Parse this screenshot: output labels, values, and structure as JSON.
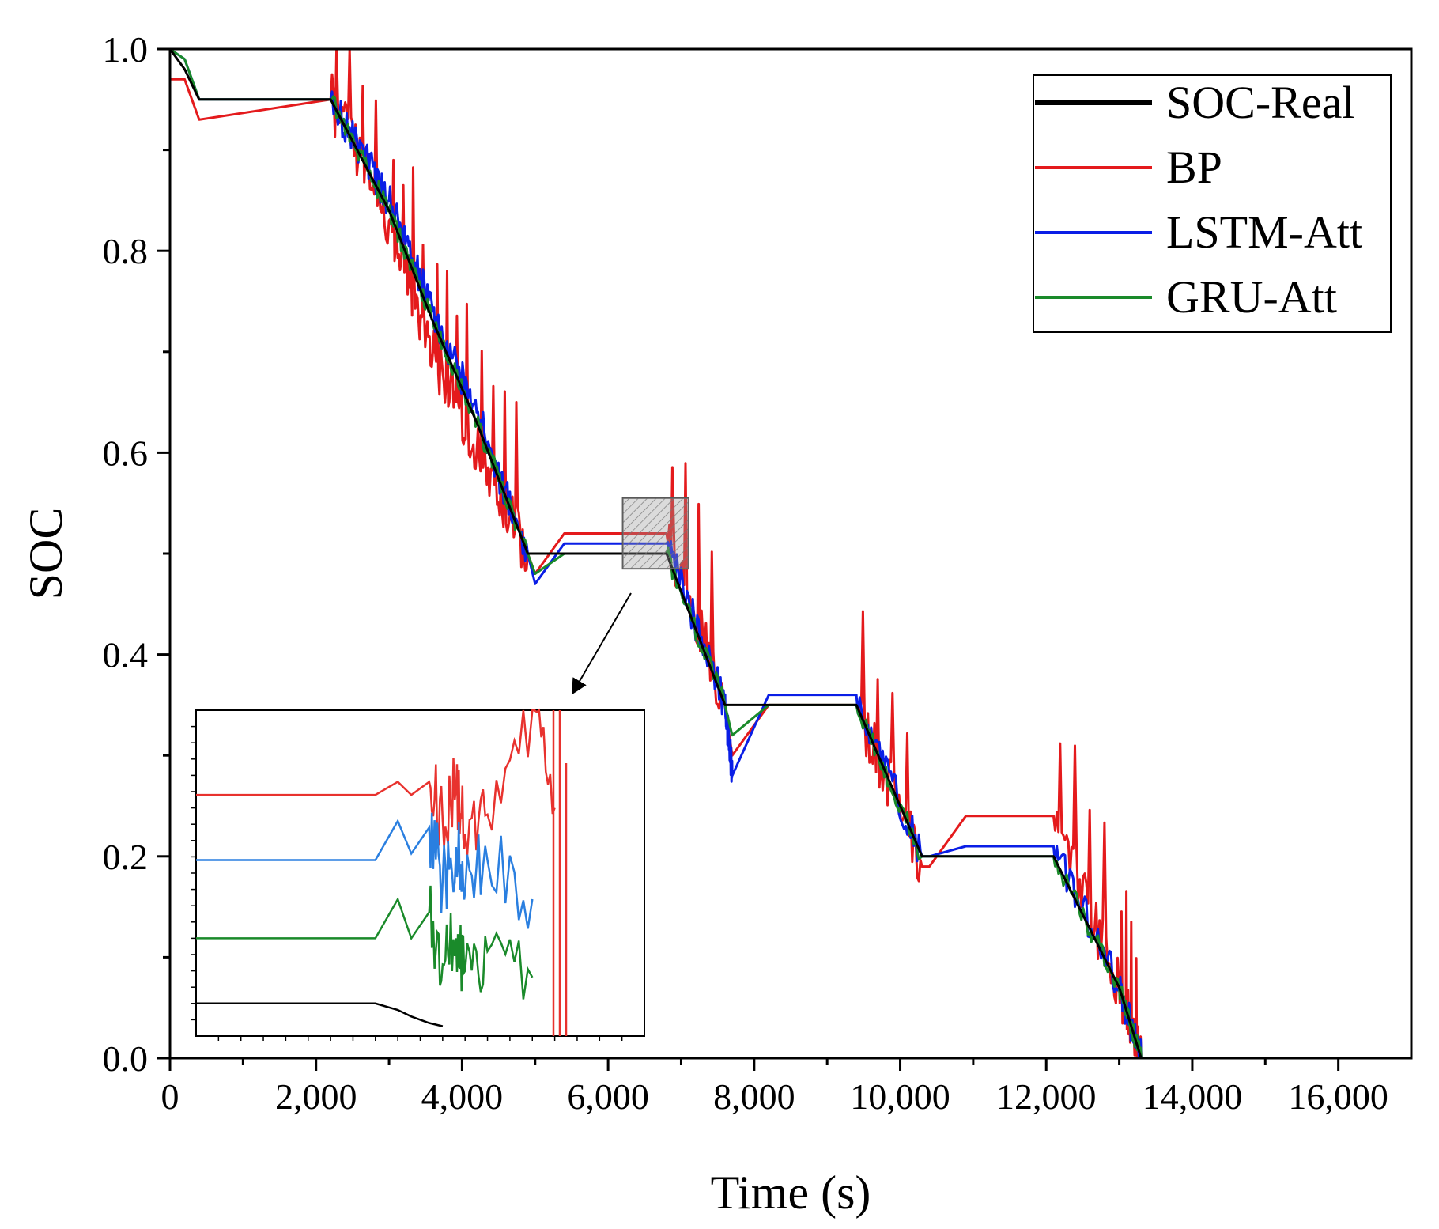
{
  "chart_data": {
    "type": "line",
    "title": "",
    "xlabel": "Time (s)",
    "ylabel": "SOC",
    "xlim": [
      0,
      17000
    ],
    "ylim": [
      0.0,
      1.0
    ],
    "x_ticks": [
      0,
      2000,
      4000,
      6000,
      8000,
      10000,
      12000,
      14000,
      16000
    ],
    "x_tick_labels": [
      "0",
      "2,000",
      "4,000",
      "6,000",
      "8,000",
      "10,000",
      "12,000",
      "14,000",
      "16,000"
    ],
    "y_ticks": [
      0.0,
      0.2,
      0.4,
      0.6,
      0.8,
      1.0
    ],
    "y_tick_labels": [
      "0.0",
      "0.2",
      "0.4",
      "0.6",
      "0.8",
      "1.0"
    ],
    "legend_position": "top-right",
    "series": [
      {
        "name": "SOC-Real",
        "color": "#000000",
        "x": [
          0,
          200,
          400,
          2200,
          3000,
          3600,
          4200,
          4900,
          6800,
          7600,
          9400,
          10300,
          12100,
          13000,
          13300,
          17000
        ],
        "values": [
          1.0,
          0.98,
          0.95,
          0.95,
          0.84,
          0.73,
          0.63,
          0.5,
          0.5,
          0.35,
          0.35,
          0.2,
          0.2,
          0.07,
          0.0,
          0.0
        ]
      },
      {
        "name": "BP",
        "color": "#e41a1c",
        "x": [
          0,
          200,
          400,
          2200,
          3000,
          3600,
          4200,
          4900,
          5000,
          5400,
          6800,
          7600,
          7700,
          8200,
          9400,
          10300,
          10400,
          10900,
          12100,
          13000,
          13300,
          17000
        ],
        "values": [
          0.97,
          0.97,
          0.93,
          0.95,
          0.83,
          0.7,
          0.6,
          0.5,
          0.48,
          0.52,
          0.52,
          0.35,
          0.3,
          0.35,
          0.35,
          0.19,
          0.19,
          0.24,
          0.24,
          0.07,
          0.0,
          0.0
        ]
      },
      {
        "name": "LSTM-Att",
        "color": "#0a1ee6",
        "x": [
          0,
          200,
          400,
          2200,
          3000,
          3600,
          4200,
          4900,
          5000,
          5400,
          6800,
          7600,
          7700,
          8200,
          9400,
          10300,
          10400,
          10900,
          12100,
          13000,
          13300,
          17000
        ],
        "values": [
          1.0,
          0.99,
          0.95,
          0.95,
          0.85,
          0.74,
          0.64,
          0.5,
          0.47,
          0.51,
          0.51,
          0.35,
          0.28,
          0.36,
          0.36,
          0.2,
          0.2,
          0.21,
          0.21,
          0.07,
          0.0,
          0.0
        ]
      },
      {
        "name": "GRU-Att",
        "color": "#1a8a2a",
        "x": [
          0,
          200,
          400,
          2200,
          3000,
          3600,
          4200,
          4900,
          5000,
          5400,
          6800,
          7600,
          7700,
          8200,
          9400,
          10300,
          10400,
          10900,
          12100,
          13000,
          13300,
          17000
        ],
        "values": [
          1.0,
          0.99,
          0.95,
          0.95,
          0.84,
          0.73,
          0.63,
          0.5,
          0.48,
          0.5,
          0.5,
          0.35,
          0.32,
          0.35,
          0.35,
          0.2,
          0.2,
          0.2,
          0.2,
          0.07,
          0.0,
          0.0
        ]
      }
    ],
    "zoom_region": {
      "x": [
        6200,
        7100
      ],
      "y": [
        0.485,
        0.555
      ]
    },
    "inset": {
      "note": "magnified view of the zoom region; no tick labels",
      "x": [
        0,
        20,
        40,
        45,
        48,
        52,
        55,
        58,
        60,
        65,
        75,
        80,
        100
      ],
      "series": [
        {
          "name": "SOC-Real",
          "values": [
            0.49,
            0.49,
            0.49,
            0.489,
            0.488,
            0.487,
            0.4865,
            null,
            null,
            null,
            null,
            null,
            null
          ]
        },
        {
          "name": "BP",
          "values": [
            0.522,
            0.522,
            0.522,
            0.524,
            0.522,
            0.524,
            0.518,
            0.523,
            0.516,
            0.519,
            0.535,
            0.52,
            null
          ]
        },
        {
          "name": "LSTM-Att",
          "values": [
            0.512,
            0.512,
            0.512,
            0.518,
            0.513,
            0.517,
            0.509,
            0.514,
            0.507,
            0.512,
            0.506,
            null,
            null
          ]
        },
        {
          "name": "GRU-Att",
          "values": [
            0.5,
            0.5,
            0.5,
            0.506,
            0.5,
            0.504,
            0.496,
            0.5,
            0.495,
            0.498,
            0.494,
            null,
            null
          ]
        }
      ]
    }
  }
}
